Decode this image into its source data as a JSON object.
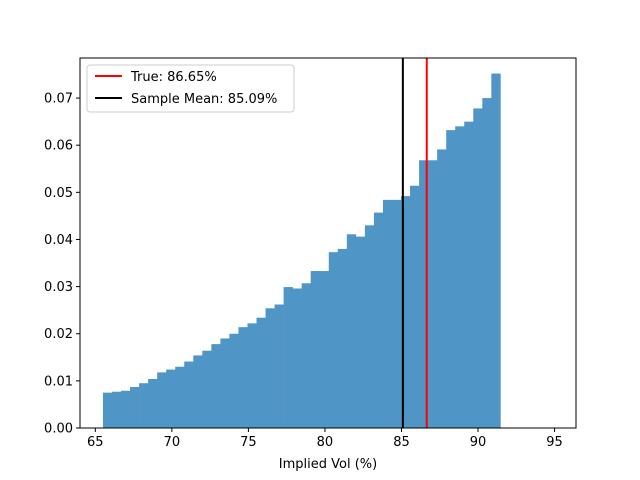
{
  "chart_data": {
    "type": "bar",
    "subtype": "histogram",
    "xlabel": "Implied Vol (%)",
    "ylabel": "",
    "xlim": [
      64.0,
      96.4
    ],
    "ylim": [
      0,
      0.0785
    ],
    "x_ticks": [
      65,
      70,
      75,
      80,
      85,
      90,
      95
    ],
    "y_ticks": [
      0.0,
      0.01,
      0.02,
      0.03,
      0.04,
      0.05,
      0.06,
      0.07
    ],
    "y_tick_labels": [
      "0.00",
      "0.01",
      "0.02",
      "0.03",
      "0.04",
      "0.05",
      "0.06",
      "0.07"
    ],
    "bar_color": "#4f95c6",
    "bin_start": 65.5,
    "bin_width": 0.59,
    "values": [
      0.0075,
      0.0077,
      0.0079,
      0.0087,
      0.0095,
      0.0104,
      0.0118,
      0.0124,
      0.013,
      0.0141,
      0.0154,
      0.0164,
      0.0178,
      0.019,
      0.02,
      0.0214,
      0.0222,
      0.0234,
      0.0254,
      0.0262,
      0.0299,
      0.0296,
      0.0307,
      0.0333,
      0.0333,
      0.0373,
      0.038,
      0.0411,
      0.0406,
      0.043,
      0.0457,
      0.0484,
      0.0484,
      0.0492,
      0.0514,
      0.0568,
      0.0568,
      0.0591,
      0.0632,
      0.064,
      0.065,
      0.0678,
      0.07,
      0.0752
    ],
    "vlines": [
      {
        "name": "True: 86.65%",
        "x": 86.65,
        "color": "#ff0000"
      },
      {
        "name": "Sample Mean: 85.09%",
        "x": 85.09,
        "color": "#000000"
      }
    ],
    "legend_position": "upper-left",
    "grid": false
  }
}
